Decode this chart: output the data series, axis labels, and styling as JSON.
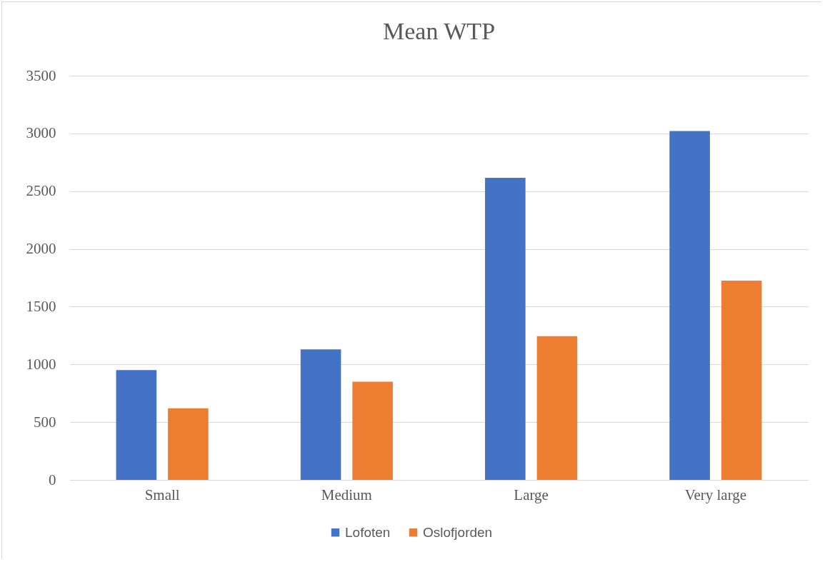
{
  "chart_data": {
    "type": "bar",
    "title": "Mean WTP",
    "categories": [
      "Small",
      "Medium",
      "Large",
      "Very large"
    ],
    "series": [
      {
        "name": "Lofoten",
        "color": "#4472c4",
        "values": [
          950,
          1130,
          2615,
          3020
        ]
      },
      {
        "name": "Oslofjorden",
        "color": "#ed7d31",
        "values": [
          620,
          850,
          1245,
          1725
        ]
      }
    ],
    "ylim": [
      0,
      3500
    ],
    "yticks": [
      0,
      500,
      1000,
      1500,
      2000,
      2500,
      3000,
      3500
    ],
    "grid": "y",
    "legend": "bottom"
  }
}
